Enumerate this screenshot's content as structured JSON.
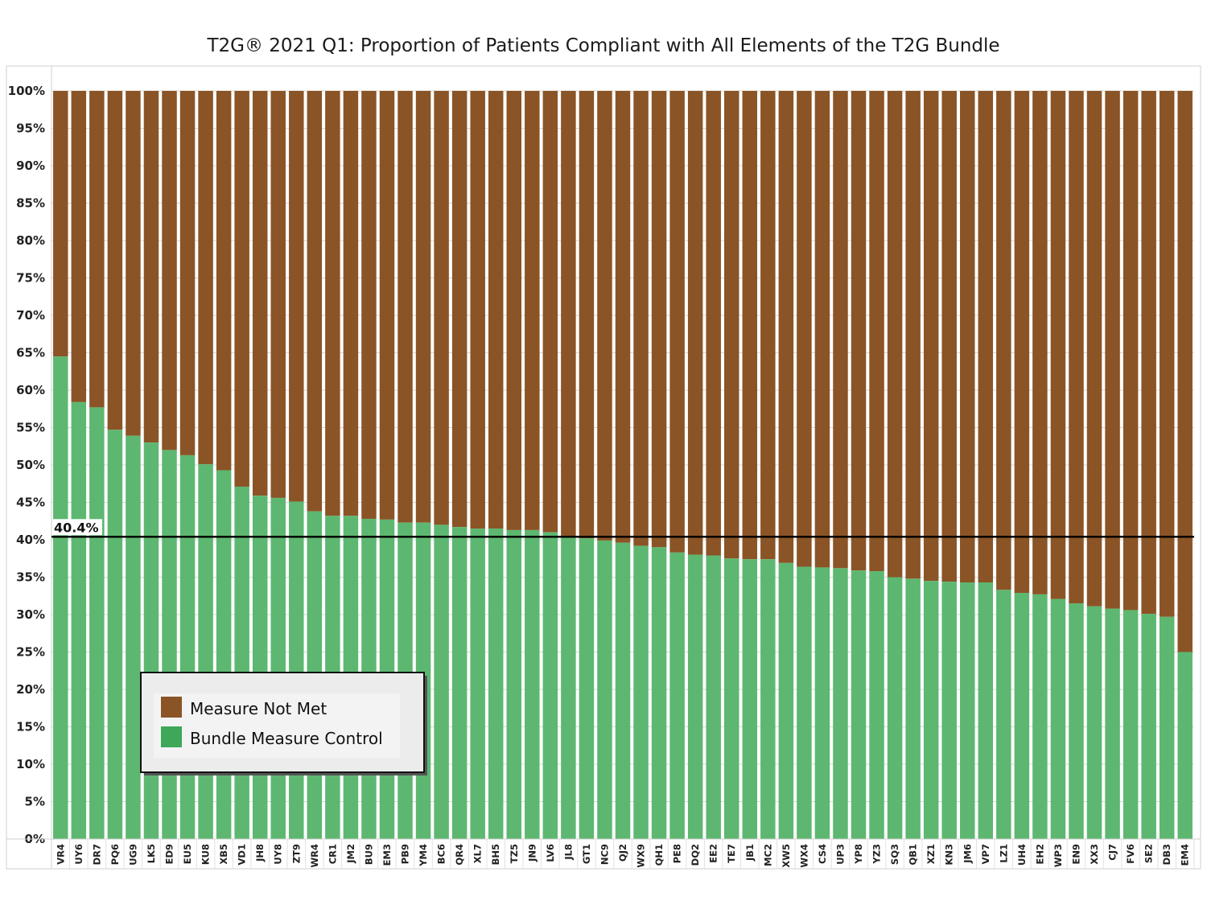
{
  "chart_data": {
    "type": "bar",
    "stacked": true,
    "title": "T2G® 2021 Q1: Proportion of Patients Compliant with All Elements of the T2G Bundle",
    "xlabel": "",
    "ylabel": "",
    "ylim": [
      0,
      100
    ],
    "y_ticks": [
      "0%",
      "5%",
      "10%",
      "15%",
      "20%",
      "25%",
      "30%",
      "35%",
      "40%",
      "45%",
      "50%",
      "55%",
      "60%",
      "65%",
      "70%",
      "75%",
      "80%",
      "85%",
      "90%",
      "95%",
      "100%"
    ],
    "grid": true,
    "legend_position": "bottom-left",
    "reference_line": {
      "value": 40.4,
      "label": "40.4%"
    },
    "colors": {
      "not_met": "#8B5426",
      "control": "#5DB771",
      "legend_control": "#3DA85A",
      "reference": "#000000"
    },
    "categories": [
      "VR4",
      "UY6",
      "DR7",
      "PQ6",
      "UG9",
      "LK5",
      "ED9",
      "EU5",
      "KU8",
      "XB5",
      "VD1",
      "JH8",
      "UY8",
      "ZT9",
      "WR4",
      "CR1",
      "JM2",
      "BU9",
      "EM3",
      "PB9",
      "YM4",
      "BC6",
      "QR4",
      "XL7",
      "BH5",
      "TZ5",
      "JN9",
      "LV6",
      "JL8",
      "GT1",
      "NC9",
      "QJ2",
      "WX9",
      "QH1",
      "PE8",
      "DQ2",
      "EE2",
      "TE7",
      "JB1",
      "MC2",
      "XW5",
      "WX4",
      "CS4",
      "UP3",
      "YP8",
      "YZ3",
      "SQ3",
      "QB1",
      "XZ1",
      "KN3",
      "JM6",
      "VP7",
      "LZ1",
      "UH4",
      "EH2",
      "WP3",
      "EN9",
      "XX3",
      "CJ7",
      "FV6",
      "SE2",
      "DB3",
      "EM4"
    ],
    "series": [
      {
        "name": "Bundle Measure Control",
        "values": [
          64.5,
          58.4,
          57.7,
          54.7,
          53.9,
          53.0,
          52.0,
          51.3,
          50.1,
          49.3,
          47.1,
          45.9,
          45.6,
          45.1,
          43.8,
          43.2,
          43.2,
          42.8,
          42.7,
          42.3,
          42.3,
          42.0,
          41.7,
          41.5,
          41.5,
          41.3,
          41.3,
          41.0,
          40.3,
          40.2,
          39.9,
          39.6,
          39.2,
          39.0,
          38.3,
          38.0,
          37.9,
          37.5,
          37.4,
          37.4,
          36.9,
          36.4,
          36.3,
          36.2,
          35.9,
          35.8,
          35.0,
          34.8,
          34.5,
          34.4,
          34.3,
          34.3,
          33.3,
          32.9,
          32.7,
          32.1,
          31.5,
          31.1,
          30.8,
          30.6,
          30.1,
          29.7,
          25.0
        ]
      },
      {
        "name": "Measure Not Met",
        "values": [
          35.5,
          41.6,
          42.3,
          45.3,
          46.1,
          47.0,
          48.0,
          48.7,
          49.9,
          50.7,
          52.9,
          54.1,
          54.4,
          54.9,
          56.2,
          56.8,
          56.8,
          57.2,
          57.3,
          57.7,
          57.7,
          58.0,
          58.3,
          58.5,
          58.5,
          58.7,
          58.7,
          59.0,
          59.7,
          59.8,
          60.1,
          60.4,
          60.8,
          61.0,
          61.7,
          62.0,
          62.1,
          62.5,
          62.6,
          62.6,
          63.1,
          63.6,
          63.7,
          63.8,
          64.1,
          64.2,
          65.0,
          65.2,
          65.5,
          65.6,
          65.7,
          65.7,
          66.7,
          67.1,
          67.3,
          67.9,
          68.5,
          68.9,
          69.2,
          69.4,
          69.9,
          70.3,
          75.0
        ]
      }
    ],
    "legend": [
      "Measure Not Met",
      "Bundle Measure Control"
    ]
  }
}
